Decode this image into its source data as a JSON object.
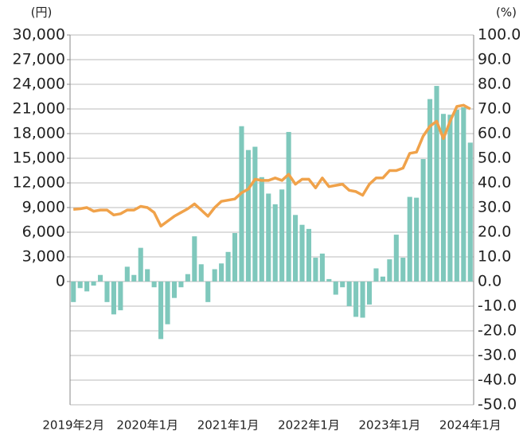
{
  "chart_data": {
    "type": "bar_line",
    "y_unit": "(円)",
    "y2_unit": "(%)",
    "categories": [
      "2019年2月",
      null,
      null,
      null,
      null,
      null,
      null,
      null,
      null,
      null,
      null,
      "2020年1月",
      null,
      null,
      null,
      null,
      null,
      null,
      null,
      null,
      null,
      null,
      null,
      "2021年1月",
      null,
      null,
      null,
      null,
      null,
      null,
      null,
      null,
      null,
      null,
      null,
      "2022年1月",
      null,
      null,
      null,
      null,
      null,
      null,
      null,
      null,
      null,
      null,
      null,
      "2023年1月",
      null,
      null,
      null,
      null,
      null,
      null,
      null,
      null,
      null,
      null,
      null,
      "2024年1月"
    ],
    "series": [
      {
        "color": "#7fc8bc",
        "values": [
          -2500,
          -800,
          -1200,
          -500,
          800,
          -2500,
          -4000,
          -3500,
          1800,
          800,
          4100,
          1500,
          -700,
          -7000,
          -5200,
          -2000,
          -700,
          900,
          5500,
          2100,
          -2500,
          1500,
          2200,
          3600,
          5900,
          18900,
          16000,
          16400,
          12700,
          10700,
          9400,
          11200,
          18200,
          8100,
          6900,
          6400,
          2900,
          3400,
          300,
          -1600,
          -700,
          -3000,
          -4300,
          -4400,
          -2800,
          1600,
          600,
          2700,
          5700,
          2900,
          10300,
          10200,
          14900,
          22200,
          23800,
          20400,
          20300,
          20900,
          21200,
          16900
        ]
      },
      {
        "color": "#f0a24a",
        "axis": "y2",
        "values": [
          29.3,
          29.5,
          30,
          28.5,
          29,
          29,
          27,
          27.5,
          29,
          29,
          30.5,
          30,
          28,
          22.5,
          24.5,
          26.5,
          28,
          29.5,
          31.5,
          29,
          26.5,
          30,
          32.5,
          33,
          33.5,
          36,
          37.5,
          41.5,
          41,
          41,
          42,
          41,
          43.5,
          39.5,
          41.5,
          41.5,
          38,
          42,
          38.5,
          39,
          39.5,
          37,
          36.5,
          35,
          39.5,
          42,
          42,
          45,
          45,
          46,
          52,
          52.5,
          59,
          63,
          65,
          58,
          65,
          71,
          71.5,
          70
        ]
      }
    ],
    "ylim": [
      -15000,
      30000
    ],
    "yticks": [
      0,
      {
        "value": 3000,
        "label": "3,000"
      },
      {
        "value": 6000,
        "label": "6,000"
      },
      {
        "value": 9000,
        "label": "9,000"
      },
      {
        "value": 12000,
        "label": "12,000"
      },
      {
        "value": 15000,
        "label": "15,000"
      },
      {
        "value": 18000,
        "label": "18,000"
      },
      {
        "value": 21000,
        "label": "21,000"
      },
      {
        "value": 24000,
        "label": "24,000"
      },
      {
        "value": 27000,
        "label": "27,000"
      },
      {
        "value": 30000,
        "label": "30,000"
      }
    ],
    "y2lim": [
      -50,
      100
    ],
    "y2ticks": [
      {
        "value": 100,
        "label": "100.0"
      },
      {
        "value": 90,
        "label": "90.0"
      },
      {
        "value": 80,
        "label": "80.0"
      },
      {
        "value": 70,
        "label": "70.0"
      },
      {
        "value": 60,
        "label": "60.0"
      },
      {
        "value": 50,
        "label": "50.0"
      },
      {
        "value": 40,
        "label": "40.0"
      },
      {
        "value": 30,
        "label": "30.0"
      },
      {
        "value": 20,
        "label": "20.0"
      },
      {
        "value": 10,
        "label": "10.0"
      },
      {
        "value": 0,
        "label": "0.0"
      },
      {
        "value": -10,
        "label": "-10.0"
      },
      {
        "value": -20,
        "label": "-20.0"
      },
      {
        "value": -30,
        "label": "-30.0"
      },
      {
        "value": -40,
        "label": "-40.0"
      },
      {
        "value": -50,
        "label": "-50.0"
      }
    ],
    "grid": true
  }
}
